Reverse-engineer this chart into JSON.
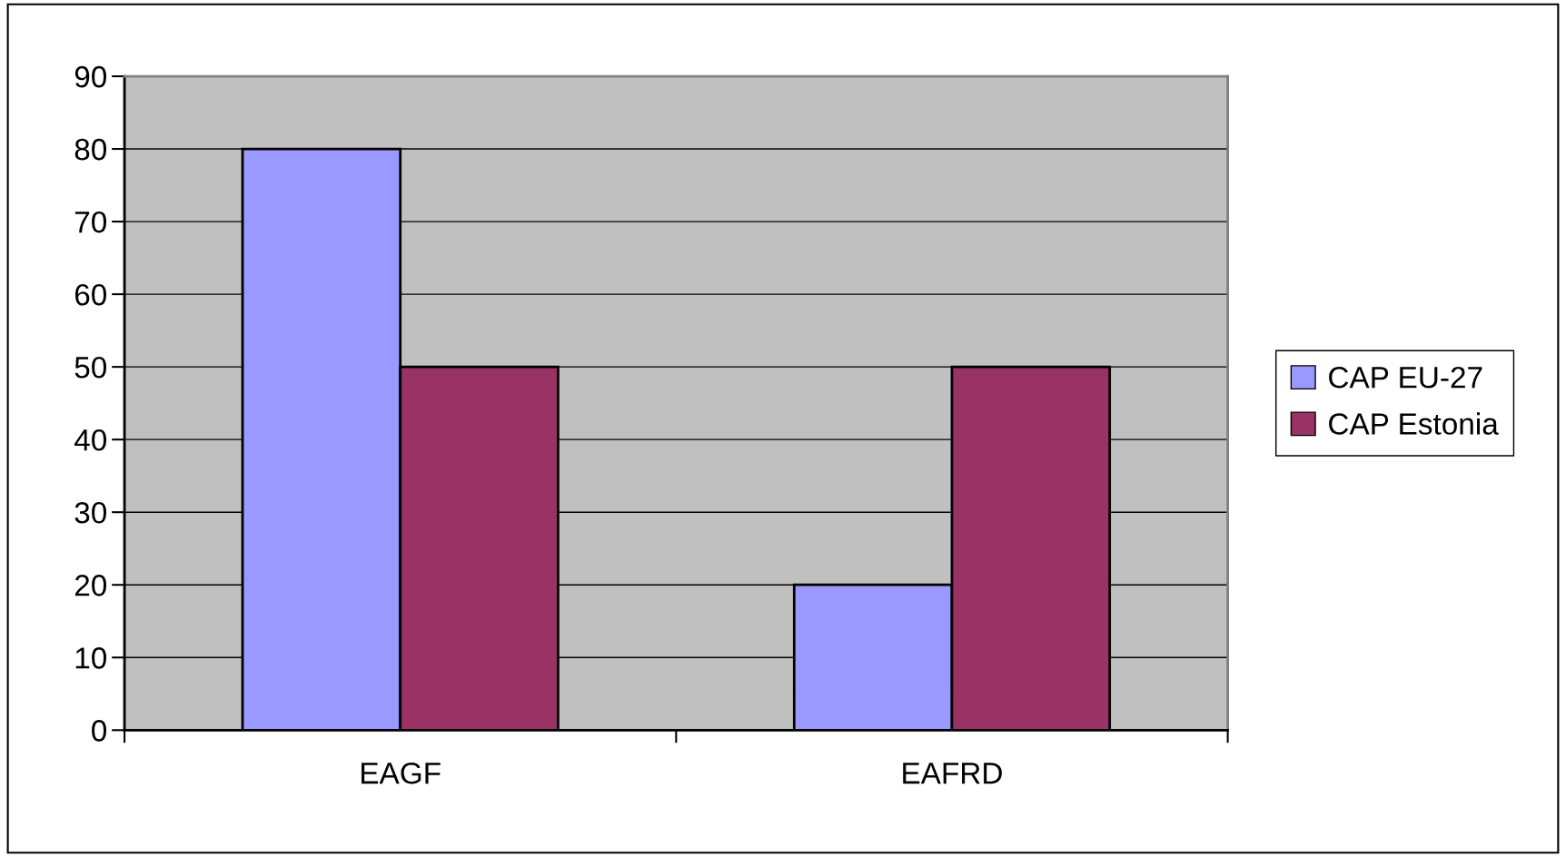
{
  "chart_data": {
    "type": "bar",
    "categories": [
      "EAGF",
      "EAFRD"
    ],
    "series": [
      {
        "name": "CAP EU-27",
        "color": "#9999ff",
        "values": [
          80,
          20
        ]
      },
      {
        "name": "CAP Estonia",
        "color": "#993366",
        "values": [
          50,
          50
        ]
      }
    ],
    "ylim": [
      0,
      90
    ],
    "yticks": [
      0,
      10,
      20,
      30,
      40,
      50,
      60,
      70,
      80,
      90
    ],
    "grid": "y",
    "legend": "right"
  }
}
